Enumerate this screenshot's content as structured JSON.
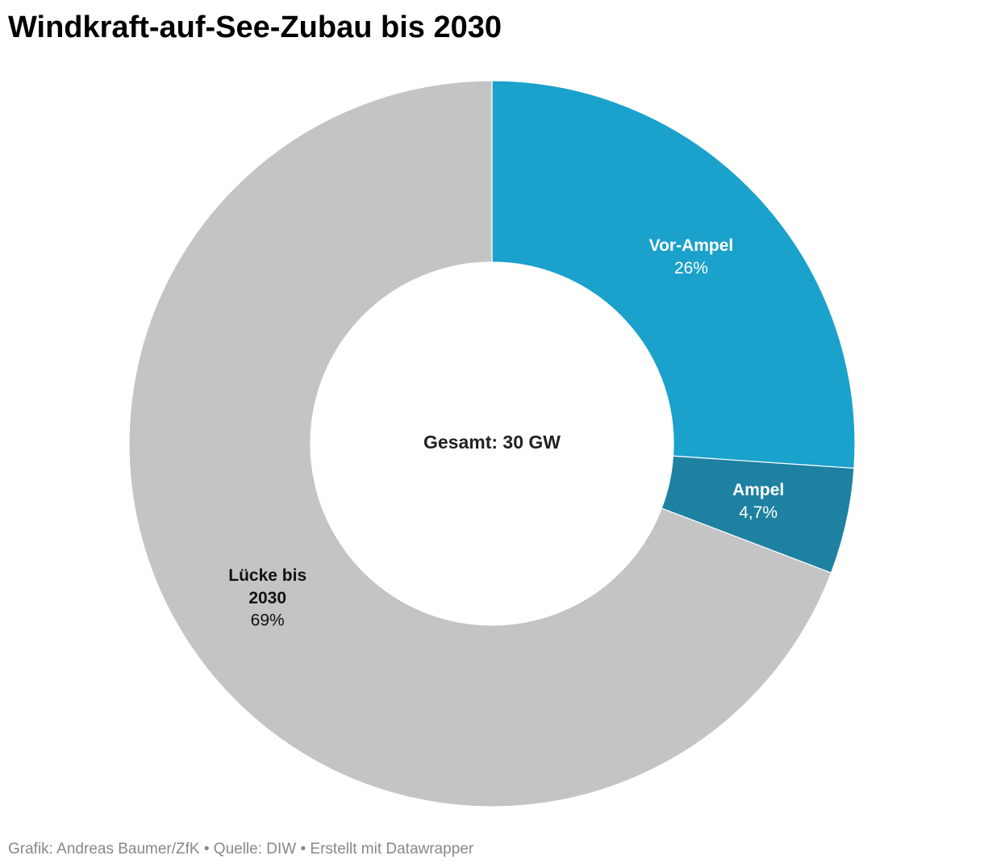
{
  "chart_data": {
    "type": "donut",
    "title": "Windkraft-auf-See-Zubau bis 2030",
    "center_label": "Gesamt: 30 GW",
    "categories": [
      "Vor-Ampel",
      "Ampel",
      "Lücke bis 2030"
    ],
    "values": [
      26,
      4.7,
      69
    ],
    "value_labels": [
      "26%",
      "4,7%",
      "69%"
    ],
    "colors": [
      "#1aa1cc",
      "#1e81a1",
      "#c4c4c4"
    ],
    "footer": "Grafik: Andreas Baumer/ZfK • Quelle: DIW • Erstellt mit Datawrapper"
  }
}
